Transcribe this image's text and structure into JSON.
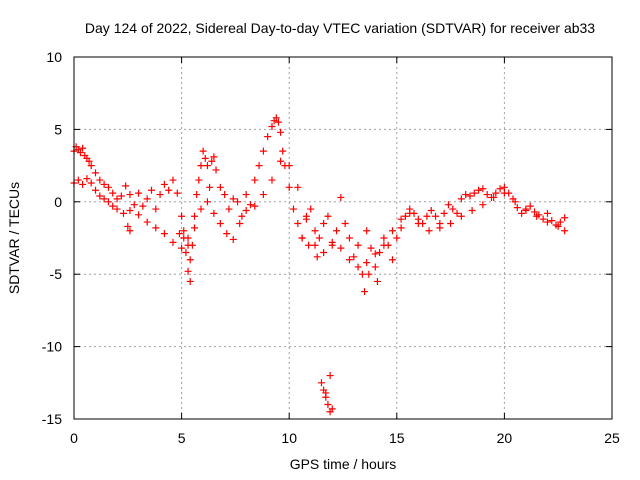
{
  "chart_data": {
    "type": "scatter",
    "title": "Day 124 of 2022, Sidereal Day-to-day VTEC variation (SDTVAR) for receiver ab33",
    "xlabel": "GPS time / hours",
    "ylabel": "SDTVAR / TECUs",
    "xlim": [
      0,
      25
    ],
    "ylim": [
      -15,
      10
    ],
    "xticks": [
      "0",
      "5",
      "10",
      "15",
      "20",
      "25"
    ],
    "yticks": [
      "10",
      "5",
      "0",
      "-5",
      "-10",
      "-15"
    ],
    "grid": true,
    "marker": "plus",
    "color": "#ff0000",
    "series": [
      {
        "name": "SDTVAR",
        "x": [
          0.0,
          0.1,
          0.2,
          0.3,
          0.4,
          0.5,
          0.6,
          0.7,
          0.8,
          1.0,
          1.2,
          1.4,
          1.6,
          1.8,
          2.0,
          2.2,
          2.4,
          2.6,
          2.8,
          3.0,
          3.2,
          3.4,
          3.6,
          3.8,
          4.0,
          4.2,
          4.4,
          4.6,
          4.8,
          5.0,
          5.1,
          5.2,
          5.3,
          5.4,
          5.5,
          5.6,
          5.7,
          5.8,
          5.9,
          6.0,
          6.1,
          6.2,
          6.3,
          6.4,
          6.5,
          6.6,
          6.8,
          7.0,
          7.2,
          7.4,
          7.6,
          7.8,
          8.0,
          8.2,
          8.4,
          8.6,
          8.8,
          9.0,
          9.2,
          9.3,
          9.4,
          9.5,
          9.6,
          9.7,
          9.8,
          10.0,
          10.2,
          10.4,
          10.6,
          10.8,
          11.0,
          11.2,
          11.4,
          11.6,
          11.8,
          12.0,
          12.2,
          12.4,
          12.6,
          12.8,
          13.0,
          13.2,
          13.4,
          13.6,
          13.8,
          14.0,
          14.2,
          14.4,
          14.6,
          14.8,
          15.0,
          15.2,
          15.4,
          15.6,
          15.8,
          16.0,
          16.2,
          16.4,
          16.6,
          16.8,
          17.0,
          17.2,
          17.4,
          17.6,
          17.8,
          18.0,
          18.2,
          18.4,
          18.6,
          18.8,
          19.0,
          19.2,
          19.4,
          19.6,
          19.8,
          20.0,
          20.2,
          20.4,
          20.6,
          20.8,
          21.0,
          21.2,
          21.4,
          21.6,
          21.8,
          22.0,
          22.2,
          22.4,
          22.6,
          22.8,
          0.0,
          0.2,
          0.4,
          0.6,
          0.8,
          1.0,
          1.2,
          1.4,
          1.6,
          1.8,
          2.0,
          2.3,
          2.6,
          3.0,
          3.4,
          3.8,
          4.2,
          4.6,
          5.0,
          5.3,
          5.6,
          5.9,
          6.2,
          6.5,
          6.8,
          7.1,
          7.4,
          7.7,
          8.0,
          8.4,
          8.8,
          9.2,
          9.6,
          10.0,
          10.4,
          10.8,
          11.2,
          11.6,
          12.0,
          12.4,
          12.8,
          13.2,
          13.6,
          14.0,
          14.4,
          14.8,
          15.2,
          15.6,
          16.0,
          16.5,
          17.0,
          17.5,
          18.0,
          18.5,
          19.0,
          19.5,
          20.0,
          20.5,
          21.0,
          21.5,
          22.0,
          22.5,
          22.8,
          11.5,
          11.6,
          11.7,
          11.8,
          11.9,
          12.0,
          11.7,
          11.9,
          5.1,
          5.3,
          5.4,
          4.9,
          13.5,
          13.7,
          14.1,
          2.5,
          2.6,
          10.6,
          10.9,
          11.3
        ],
        "y": [
          3.5,
          3.8,
          3.6,
          3.4,
          3.7,
          3.2,
          3.0,
          2.8,
          2.5,
          2.0,
          1.5,
          1.2,
          1.0,
          0.6,
          0.2,
          0.4,
          1.1,
          0.5,
          -0.2,
          0.6,
          -0.3,
          0.2,
          0.8,
          -0.5,
          0.5,
          1.2,
          0.8,
          1.5,
          0.6,
          -1.0,
          -2.5,
          -3.5,
          -4.8,
          -5.5,
          -3.0,
          -1.0,
          0.5,
          1.5,
          2.5,
          3.5,
          3.0,
          2.5,
          1.0,
          2.8,
          3.1,
          2.2,
          1.0,
          0.5,
          -0.5,
          0.2,
          0.0,
          -1.0,
          0.5,
          -0.2,
          1.5,
          2.5,
          3.5,
          4.5,
          5.2,
          5.6,
          5.8,
          5.5,
          4.8,
          3.5,
          2.5,
          1.0,
          -0.5,
          -1.5,
          -2.5,
          -1.0,
          -0.5,
          -2.0,
          -2.5,
          -1.5,
          -1.0,
          -3.0,
          -2.0,
          0.3,
          -1.5,
          -2.5,
          -3.8,
          -4.5,
          -5.0,
          -4.2,
          -3.2,
          -4.5,
          -3.5,
          -2.5,
          -3.0,
          -4.0,
          -2.5,
          -1.8,
          -1.0,
          -0.5,
          -0.8,
          -1.2,
          -1.5,
          -1.0,
          -0.6,
          -1.0,
          -1.5,
          -0.8,
          -0.2,
          -0.5,
          -0.8,
          0.2,
          0.5,
          0.4,
          0.6,
          0.8,
          0.9,
          0.5,
          0.3,
          0.6,
          0.9,
          1.0,
          0.6,
          0.2,
          -0.4,
          -0.8,
          -0.6,
          -0.3,
          -0.7,
          -0.9,
          -1.2,
          -0.8,
          -1.3,
          -1.6,
          -1.4,
          -1.1,
          1.3,
          1.5,
          1.2,
          1.6,
          1.3,
          0.8,
          0.4,
          0.2,
          0.0,
          -0.3,
          -0.5,
          -0.8,
          -0.6,
          -0.9,
          -1.4,
          -1.8,
          -2.2,
          -2.8,
          -3.2,
          -2.5,
          -1.8,
          -0.5,
          0.0,
          -0.8,
          -1.5,
          -2.2,
          -2.6,
          -1.5,
          -0.6,
          -0.3,
          0.5,
          1.5,
          2.8,
          2.5,
          1.0,
          -1.2,
          -3.0,
          -3.5,
          -2.8,
          -3.2,
          -4.0,
          -3.0,
          -2.0,
          -3.6,
          -3.0,
          -2.0,
          -1.2,
          -0.8,
          -1.5,
          -2.0,
          -1.8,
          -1.5,
          -1.0,
          -0.6,
          -0.2,
          0.3,
          0.6,
          0.0,
          -0.5,
          -1.0,
          -1.4,
          -1.7,
          -2.0,
          -12.5,
          -13.0,
          -13.5,
          -14.0,
          -14.5,
          -14.3,
          -13.2,
          -12.0,
          -2.0,
          -3.0,
          -4.0,
          -2.2,
          -6.2,
          -5.0,
          -5.5,
          -1.7,
          -2.0,
          -2.5,
          -3.0,
          -3.8
        ]
      }
    ]
  }
}
